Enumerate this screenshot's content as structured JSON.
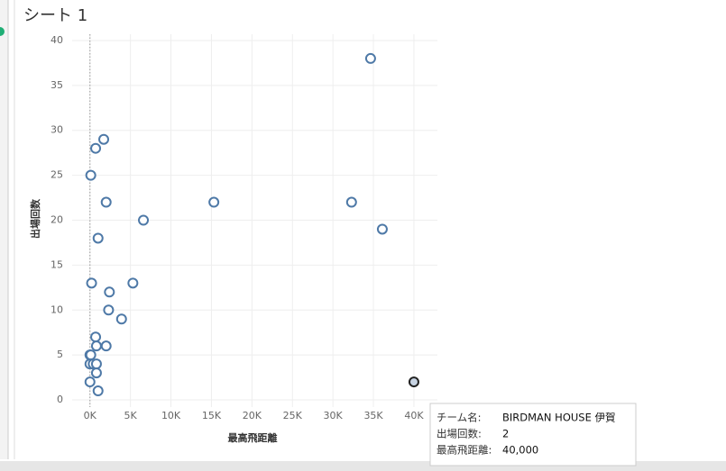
{
  "chart_data": {
    "type": "scatter",
    "title": "シート 1",
    "x_label": "最高飛距離",
    "y_label": "出場回数",
    "color": "#4e79a7",
    "highlight_color": "#222222",
    "x": [
      34650,
      1700,
      700,
      100,
      2000,
      15300,
      32300,
      6600,
      36100,
      1000,
      200,
      5300,
      2400,
      2300,
      3900,
      700,
      800,
      2000,
      0,
      100,
      0,
      400,
      800,
      800,
      0,
      1000,
      40000
    ],
    "y": [
      38,
      29,
      28,
      25,
      22,
      22,
      22,
      20,
      19,
      18,
      13,
      13,
      12,
      10,
      9,
      7,
      6,
      6,
      5,
      5,
      4,
      4,
      4,
      3,
      2,
      1,
      2
    ],
    "highlight": 26,
    "xlim": [
      -2200,
      42900
    ],
    "ylim": [
      -0.8,
      40.7
    ],
    "xticks": [
      {
        "value": 0,
        "label": "0K"
      },
      {
        "value": 5000,
        "label": "5K"
      },
      {
        "value": 10000,
        "label": "10K"
      },
      {
        "value": 15000,
        "label": "15K"
      },
      {
        "value": 20000,
        "label": "20K"
      },
      {
        "value": 25000,
        "label": "25K"
      },
      {
        "value": 30000,
        "label": "30K"
      },
      {
        "value": 35000,
        "label": "35K"
      },
      {
        "value": 40000,
        "label": "40K"
      }
    ],
    "yticks": [
      0,
      5,
      10,
      15,
      20,
      25,
      30,
      35,
      40
    ],
    "grid": true,
    "zero_line": true,
    "tooltip": [
      {
        "label": "チーム名:",
        "value": "BIRDMAN HOUSE 伊賀"
      },
      {
        "label": "出場回数:",
        "value": "2"
      },
      {
        "label": "最高飛距離:",
        "value": "40,000"
      }
    ]
  }
}
